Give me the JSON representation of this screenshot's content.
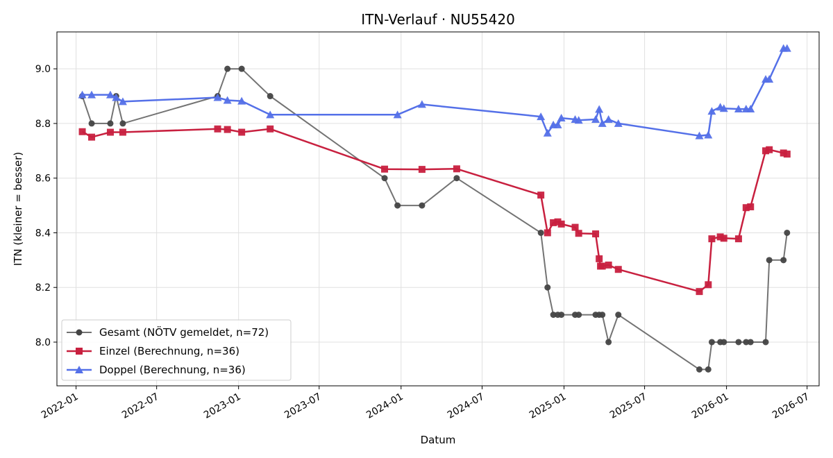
{
  "chart_data": {
    "type": "line",
    "title": "ITN-Verlauf · NU55420",
    "xlabel": "Datum",
    "ylabel": "ITN  (kleiner = besser)",
    "xlim": [
      "2021-11-19",
      "2026-07-28"
    ],
    "ylim": [
      7.84,
      9.135
    ],
    "x_ticks": [
      "2022-01",
      "2022-07",
      "2023-01",
      "2023-07",
      "2024-01",
      "2024-07",
      "2025-01",
      "2025-07",
      "2026-01",
      "2026-07"
    ],
    "y_ticks": [
      8.0,
      8.2,
      8.4,
      8.6,
      8.8,
      9.0
    ],
    "grid": true,
    "legend_position": "lower-left",
    "series": [
      {
        "name": "Gesamt (NÖTV gemeldet, n=72)",
        "color": "#444444",
        "marker": "circle",
        "points": [
          {
            "x": "2022-01-15",
            "y": 8.9
          },
          {
            "x": "2022-02-05",
            "y": 8.8
          },
          {
            "x": "2022-03-19",
            "y": 8.8
          },
          {
            "x": "2022-04-01",
            "y": 8.9
          },
          {
            "x": "2022-04-16",
            "y": 8.8
          },
          {
            "x": "2022-11-15",
            "y": 8.9
          },
          {
            "x": "2022-12-07",
            "y": 9.0
          },
          {
            "x": "2023-01-08",
            "y": 9.0
          },
          {
            "x": "2023-03-13",
            "y": 8.9
          },
          {
            "x": "2023-11-25",
            "y": 8.6
          },
          {
            "x": "2023-12-24",
            "y": 8.5
          },
          {
            "x": "2024-02-17",
            "y": 8.5
          },
          {
            "x": "2024-05-05",
            "y": 8.6
          },
          {
            "x": "2024-11-10",
            "y": 8.4
          },
          {
            "x": "2024-11-25",
            "y": 8.2
          },
          {
            "x": "2024-12-08",
            "y": 8.1
          },
          {
            "x": "2024-12-18",
            "y": 8.1
          },
          {
            "x": "2024-12-26",
            "y": 8.1
          },
          {
            "x": "2025-01-26",
            "y": 8.1
          },
          {
            "x": "2025-02-03",
            "y": 8.1
          },
          {
            "x": "2025-03-13",
            "y": 8.1
          },
          {
            "x": "2025-03-21",
            "y": 8.1
          },
          {
            "x": "2025-03-28",
            "y": 8.1
          },
          {
            "x": "2025-04-11",
            "y": 8.0
          },
          {
            "x": "2025-05-03",
            "y": 8.1
          },
          {
            "x": "2025-11-01",
            "y": 7.9
          },
          {
            "x": "2025-11-21",
            "y": 7.9
          },
          {
            "x": "2025-11-29",
            "y": 8.0
          },
          {
            "x": "2025-12-18",
            "y": 8.0
          },
          {
            "x": "2025-12-26",
            "y": 8.0
          },
          {
            "x": "2026-01-28",
            "y": 8.0
          },
          {
            "x": "2026-02-14",
            "y": 8.0
          },
          {
            "x": "2026-02-24",
            "y": 8.0
          },
          {
            "x": "2026-03-30",
            "y": 8.0
          },
          {
            "x": "2026-04-07",
            "y": 8.3
          },
          {
            "x": "2026-05-09",
            "y": 8.3
          },
          {
            "x": "2026-05-17",
            "y": 8.4
          }
        ]
      },
      {
        "name": "Einzel (Berechnung, n=36)",
        "color": "#c8203f",
        "marker": "square",
        "points": [
          {
            "x": "2022-01-15",
            "y": 8.77
          },
          {
            "x": "2022-02-05",
            "y": 8.75
          },
          {
            "x": "2022-03-19",
            "y": 8.768
          },
          {
            "x": "2022-04-16",
            "y": 8.768
          },
          {
            "x": "2022-11-15",
            "y": 8.78
          },
          {
            "x": "2022-12-07",
            "y": 8.778
          },
          {
            "x": "2023-01-08",
            "y": 8.768
          },
          {
            "x": "2023-03-13",
            "y": 8.78
          },
          {
            "x": "2023-11-25",
            "y": 8.633
          },
          {
            "x": "2024-02-17",
            "y": 8.632
          },
          {
            "x": "2024-05-05",
            "y": 8.634
          },
          {
            "x": "2024-11-10",
            "y": 8.538
          },
          {
            "x": "2024-11-25",
            "y": 8.4
          },
          {
            "x": "2024-12-08",
            "y": 8.437
          },
          {
            "x": "2024-12-18",
            "y": 8.44
          },
          {
            "x": "2024-12-26",
            "y": 8.432
          },
          {
            "x": "2025-01-26",
            "y": 8.42
          },
          {
            "x": "2025-02-03",
            "y": 8.398
          },
          {
            "x": "2025-03-13",
            "y": 8.396
          },
          {
            "x": "2025-03-21",
            "y": 8.305
          },
          {
            "x": "2025-03-24",
            "y": 8.278
          },
          {
            "x": "2025-03-28",
            "y": 8.278
          },
          {
            "x": "2025-04-11",
            "y": 8.282
          },
          {
            "x": "2025-05-03",
            "y": 8.266
          },
          {
            "x": "2025-11-01",
            "y": 8.185
          },
          {
            "x": "2025-11-21",
            "y": 8.21
          },
          {
            "x": "2025-11-29",
            "y": 8.378
          },
          {
            "x": "2025-12-18",
            "y": 8.385
          },
          {
            "x": "2025-12-26",
            "y": 8.38
          },
          {
            "x": "2026-01-28",
            "y": 8.378
          },
          {
            "x": "2026-02-14",
            "y": 8.492
          },
          {
            "x": "2026-02-24",
            "y": 8.495
          },
          {
            "x": "2026-03-30",
            "y": 8.7
          },
          {
            "x": "2026-04-07",
            "y": 8.704
          },
          {
            "x": "2026-05-09",
            "y": 8.692
          },
          {
            "x": "2026-05-17",
            "y": 8.688
          }
        ]
      },
      {
        "name": "Doppel (Berechnung, n=36)",
        "color": "#5470e8",
        "marker": "triangle",
        "points": [
          {
            "x": "2022-01-15",
            "y": 8.905
          },
          {
            "x": "2022-02-05",
            "y": 8.905
          },
          {
            "x": "2022-03-19",
            "y": 8.905
          },
          {
            "x": "2022-04-01",
            "y": 8.895
          },
          {
            "x": "2022-04-16",
            "y": 8.88
          },
          {
            "x": "2022-11-15",
            "y": 8.895
          },
          {
            "x": "2022-12-07",
            "y": 8.885
          },
          {
            "x": "2023-01-08",
            "y": 8.882
          },
          {
            "x": "2023-03-13",
            "y": 8.832
          },
          {
            "x": "2023-12-24",
            "y": 8.832
          },
          {
            "x": "2024-02-17",
            "y": 8.87
          },
          {
            "x": "2024-11-10",
            "y": 8.825
          },
          {
            "x": "2024-11-25",
            "y": 8.765
          },
          {
            "x": "2024-12-08",
            "y": 8.795
          },
          {
            "x": "2024-12-18",
            "y": 8.795
          },
          {
            "x": "2024-12-26",
            "y": 8.82
          },
          {
            "x": "2025-01-26",
            "y": 8.815
          },
          {
            "x": "2025-02-03",
            "y": 8.812
          },
          {
            "x": "2025-03-13",
            "y": 8.815
          },
          {
            "x": "2025-03-21",
            "y": 8.852
          },
          {
            "x": "2025-03-28",
            "y": 8.8
          },
          {
            "x": "2025-04-11",
            "y": 8.815
          },
          {
            "x": "2025-05-03",
            "y": 8.8
          },
          {
            "x": "2025-11-01",
            "y": 8.755
          },
          {
            "x": "2025-11-21",
            "y": 8.758
          },
          {
            "x": "2025-11-29",
            "y": 8.845
          },
          {
            "x": "2025-12-18",
            "y": 8.86
          },
          {
            "x": "2025-12-26",
            "y": 8.855
          },
          {
            "x": "2026-01-28",
            "y": 8.853
          },
          {
            "x": "2026-02-14",
            "y": 8.853
          },
          {
            "x": "2026-02-24",
            "y": 8.853
          },
          {
            "x": "2026-03-30",
            "y": 8.962
          },
          {
            "x": "2026-04-07",
            "y": 8.962
          },
          {
            "x": "2026-05-09",
            "y": 9.075
          },
          {
            "x": "2026-05-17",
            "y": 9.075
          }
        ]
      }
    ]
  }
}
